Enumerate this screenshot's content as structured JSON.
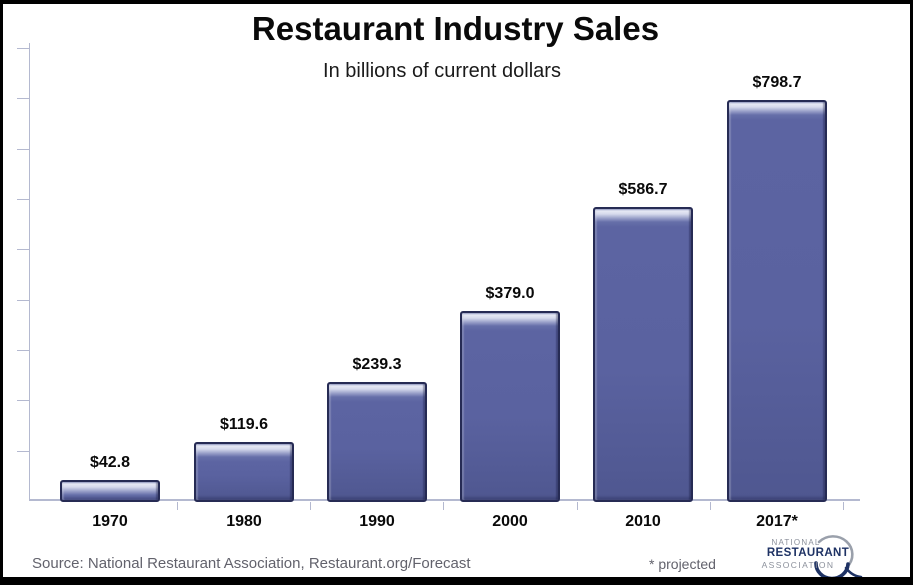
{
  "page": {
    "title": "Restaurant Industry Sales",
    "subtitle": "In billions of current dollars",
    "source": "Source: National Restaurant Association, Restaurant.org/Forecast",
    "projected_note": "* projected"
  },
  "logo": {
    "line1": "NATIONAL",
    "line2": "RESTAURANT",
    "line3": "ASSOCIATION"
  },
  "colors": {
    "bar_fill": "#5a62a0",
    "bar_border": "#262b54",
    "bar_top_highlight": "#e6e9f4",
    "axis": "#b4b9d0",
    "text": "#0a0a0a",
    "footnote": "#62626c",
    "logo_navy": "#1e3264",
    "logo_gray": "#8b909b",
    "frame_border": "#000000",
    "background": "#ffffff"
  },
  "chart_data": {
    "type": "bar",
    "title": "Restaurant Industry Sales",
    "subtitle": "In billions of current dollars",
    "categories": [
      "1970",
      "1980",
      "1990",
      "2000",
      "2010",
      "2017*"
    ],
    "values": [
      42.8,
      119.6,
      239.3,
      379.0,
      586.7,
      798.7
    ],
    "value_labels": [
      "$42.8",
      "$119.6",
      "$239.3",
      "$379.0",
      "$586.7",
      "$798.7"
    ],
    "xlabel": "",
    "ylabel": "",
    "unit": "billions of current dollars",
    "ylim": [
      0,
      900
    ],
    "y_tick_interval": 100,
    "y_tick_labels_shown": false,
    "grid": false,
    "legend": false,
    "annotations": [
      "* projected applies to 2017 value"
    ]
  }
}
